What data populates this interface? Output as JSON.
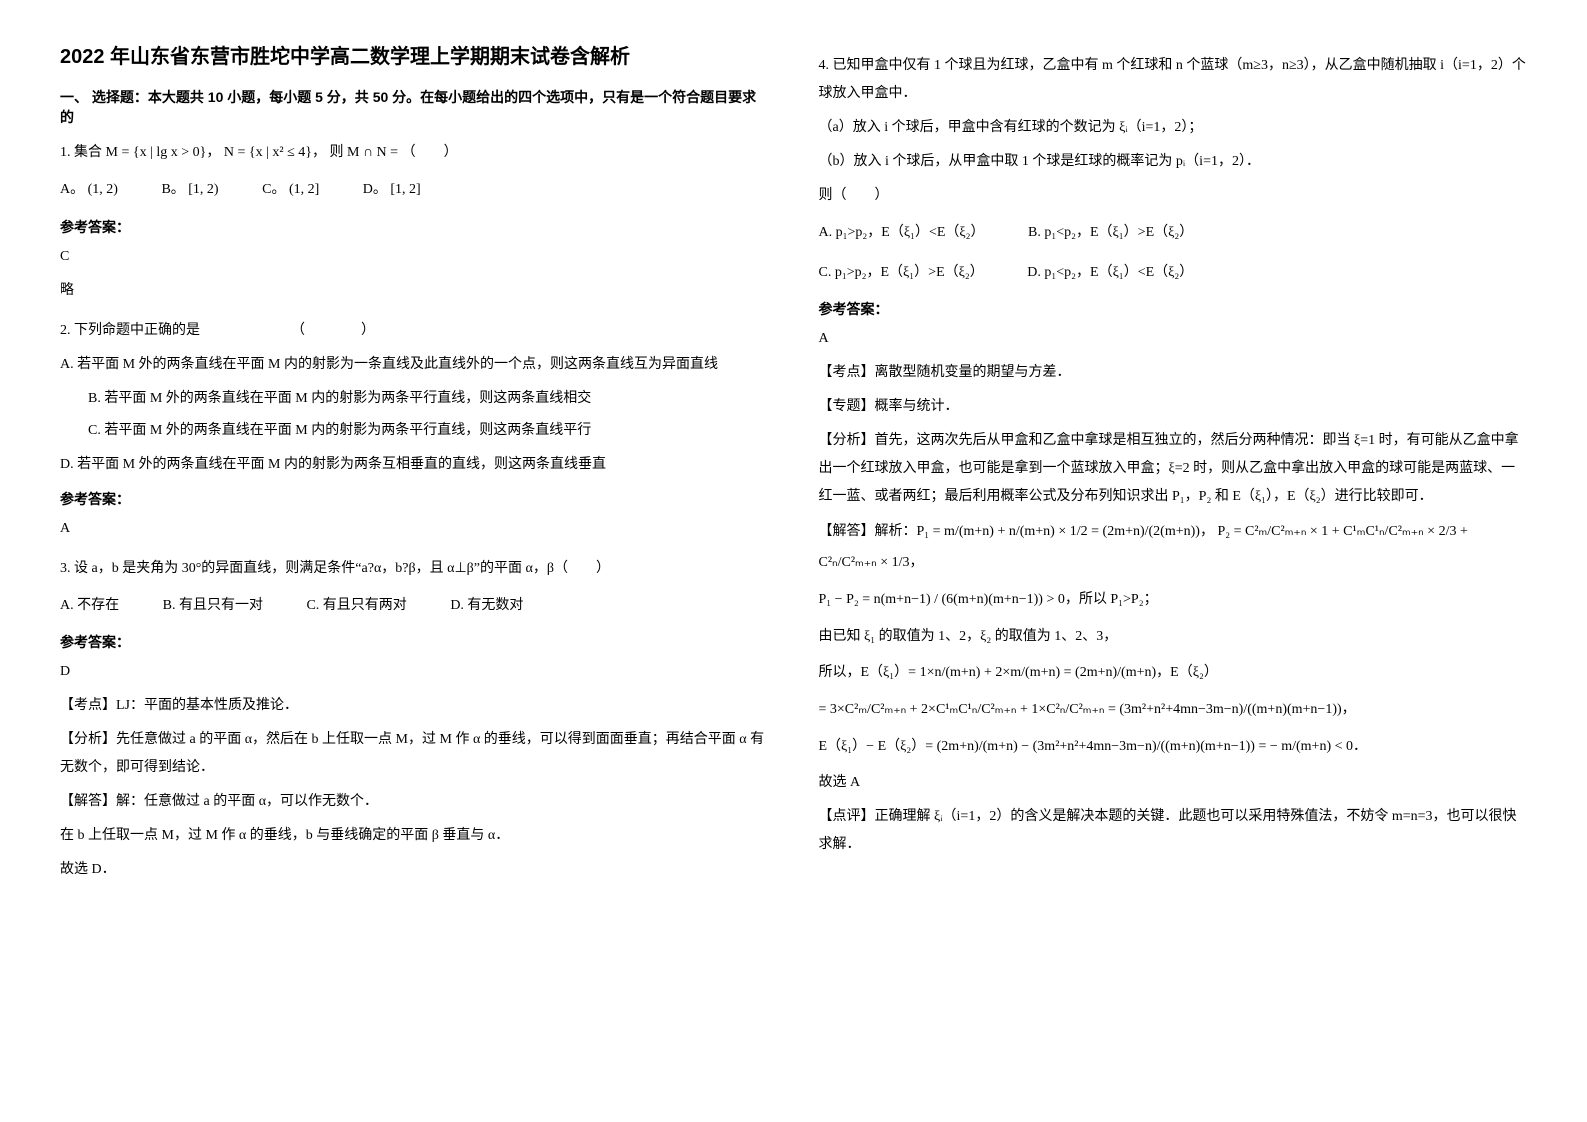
{
  "left": {
    "title": "2022 年山东省东营市胜坨中学高二数学理上学期期末试卷含解析",
    "section1": "一、 选择题：本大题共 10 小题，每小题 5 分，共 50 分。在每小题给出的四个选项中，只有是一个符合题目要求的",
    "q1": "1. 集合 M = {x | lg x > 0}， N = {x | x² ≤ 4}， 则 M ∩ N = （　　）",
    "q1_choices_A": "A。 (1, 2)",
    "q1_choices_B": "B。 [1, 2)",
    "q1_choices_C": "C。 (1, 2]",
    "q1_choices_D": "D。 [1, 2]",
    "ans_label": "参考答案：",
    "q1_ans": "C",
    "q1_note": "略",
    "q2": "2. 下列命题中正确的是　　　　　　　（　　　　）",
    "q2_A": "A. 若平面 M 外的两条直线在平面 M 内的射影为一条直线及此直线外的一个点，则这两条直线互为异面直线",
    "q2_B": "B. 若平面 M 外的两条直线在平面 M 内的射影为两条平行直线，则这两条直线相交",
    "q2_C": "C. 若平面 M 外的两条直线在平面 M 内的射影为两条平行直线，则这两条直线平行",
    "q2_D": "D. 若平面 M 外的两条直线在平面 M 内的射影为两条互相垂直的直线，则这两条直线垂直",
    "q2_ans": "A",
    "q3": "3. 设 a，b 是夹角为 30°的异面直线，则满足条件“a?α，b?β，且 α⊥β”的平面 α，β（　　）",
    "q3_A": "A. 不存在",
    "q3_B": "B. 有且只有一对",
    "q3_C": "C. 有且只有两对",
    "q3_D": "D. 有无数对",
    "q3_ans": "D",
    "q3_tag1": "【考点】LJ：平面的基本性质及推论．",
    "q3_tag2": "【分析】先任意做过 a 的平面 α，然后在 b 上任取一点 M，过 M 作 α 的垂线，可以得到面面垂直；再结合平面 α 有无数个，即可得到结论．",
    "q3_tag3": "【解答】解：任意做过 a 的平面 α，可以作无数个．",
    "q3_tag4": "在 b 上任取一点 M，过 M 作 α 的垂线，b 与垂线确定的平面 β 垂直与 α．",
    "q3_tag5": "故选 D．"
  },
  "right": {
    "q4": "4. 已知甲盒中仅有 1 个球且为红球，乙盒中有 m 个红球和 n 个蓝球（m≥3，n≥3），从乙盒中随机抽取 i（i=1，2）个球放入甲盒中．",
    "q4_a": "（a）放入 i 个球后，甲盒中含有红球的个数记为 ξᵢ（i=1，2）；",
    "q4_b": "（b）放入 i 个球后，从甲盒中取 1 个球是红球的概率记为 pᵢ（i=1，2）．",
    "q4_then": "则（　　）",
    "q4_A": "A. p₁>p₂，E（ξ₁）<E（ξ₂）",
    "q4_B": "B. p₁<p₂，E（ξ₁）>E（ξ₂）",
    "q4_C": "C. p₁>p₂，E（ξ₁）>E（ξ₂）",
    "q4_D": "D. p₁<p₂，E（ξ₁）<E（ξ₂）",
    "ans_label": "参考答案：",
    "q4_ans": "A",
    "q4_tag1": "【考点】离散型随机变量的期望与方差．",
    "q4_tag2": "【专题】概率与统计．",
    "q4_analysis": "【分析】首先，这两次先后从甲盒和乙盒中拿球是相互独立的，然后分两种情况：即当 ξ=1 时，有可能从乙盒中拿出一个红球放入甲盒，也可能是拿到一个蓝球放入甲盒；ξ=2 时，则从乙盒中拿出放入甲盒的球可能是两蓝球、一红一蓝、或者两红；最后利用概率公式及分布列知识求出 P₁，P₂ 和 E（ξ₁），E（ξ₂）进行比较即可．",
    "q4_f1": "【解答】解析：P₁ = m/(m+n) + n/(m+n) × 1/2 = (2m+n)/(2(m+n))， P₂ = C²ₘ/C²ₘ₊ₙ × 1 + C¹ₘC¹ₙ/C²ₘ₊ₙ × 2/3 + C²ₙ/C²ₘ₊ₙ × 1/3，",
    "q4_f2": "P₁ − P₂ = n(m+n−1) / (6(m+n)(m+n−1)) > 0，所以 P₁>P₂；",
    "q4_f3": "由已知 ξ₁ 的取值为 1、2，ξ₂ 的取值为 1、2、3，",
    "q4_f4": "所以，E（ξ₁）= 1×n/(m+n) + 2×m/(m+n) = (2m+n)/(m+n)，E（ξ₂）",
    "q4_f5": "= 3×C²ₘ/C²ₘ₊ₙ + 2×C¹ₘC¹ₙ/C²ₘ₊ₙ + 1×C²ₙ/C²ₘ₊ₙ = (3m²+n²+4mn−3m−n)/((m+n)(m+n−1))，",
    "q4_f6": "E（ξ₁）− E（ξ₂）= (2m+n)/(m+n) − (3m²+n²+4mn−3m−n)/((m+n)(m+n−1)) = − m/(m+n) < 0．",
    "q4_f7": "故选 A",
    "q4_comment": "【点评】正确理解 ξᵢ（i=1，2）的含义是解决本题的关键．此题也可以采用特殊值法，不妨令 m=n=3，也可以很快求解．"
  }
}
